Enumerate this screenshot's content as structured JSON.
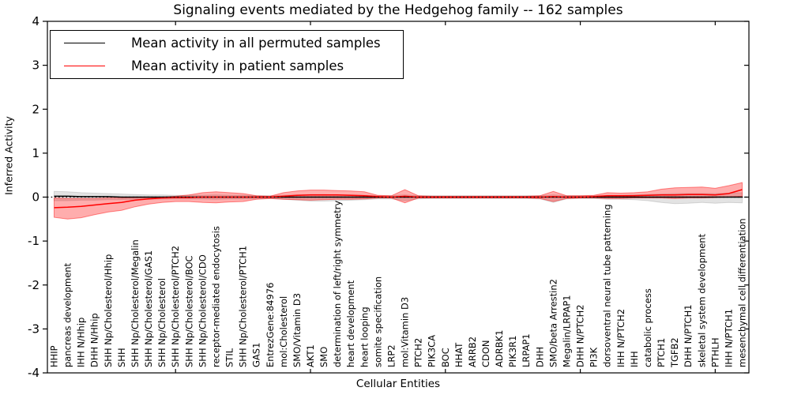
{
  "chart_data": {
    "type": "line",
    "title": "Signaling events mediated by the Hedgehog family -- 162 samples",
    "xlabel": "Cellular Entities",
    "ylabel": "Inferred Activity",
    "ylim": [
      -4,
      4
    ],
    "yticks": [
      4,
      3,
      2,
      1,
      0,
      -1,
      -2,
      -3,
      -4
    ],
    "xtick_major_indices": [
      9,
      19,
      29,
      39,
      49
    ],
    "grid": false,
    "legend_position": "upper left",
    "zero_line": {
      "y": 0,
      "style": "dotted",
      "color": "#000000"
    },
    "categories": [
      "HHIP",
      "pancreas development",
      "IHH N/Hhip",
      "DHH N/Hhip",
      "SHH Np/Cholesterol/Hhip",
      "SHH",
      "SHH Np/Cholesterol/Megalin",
      "SHH Np/Cholesterol/GAS1",
      "SHH Np/Cholesterol",
      "SHH Np/Cholesterol/PTCH2",
      "SHH Np/Cholesterol/BOC",
      "SHH Np/Cholesterol/CDO",
      "receptor-mediated endocytosis",
      "STIL",
      "SHH Np/Cholesterol/PTCH1",
      "GAS1",
      "EntrezGene:84976",
      "mol:Cholesterol",
      "SMO/Vitamin D3",
      "AKT1",
      "SMO",
      "determination of left/right symmetry",
      "heart development",
      "heart looping",
      "somite specification",
      "LRP2",
      "mol:Vitamin D3",
      "PTCH2",
      "PIK3CA",
      "BOC",
      "HHAT",
      "ARRB2",
      "CDON",
      "ADRBK1",
      "PIK3R1",
      "LRPAP1",
      "DHH",
      "SMO/beta Arrestin2",
      "Megalin/LRPAP1",
      "DHH N/PTCH2",
      "PI3K",
      "dorsoventral neural tube patterning",
      "IHH N/PTCH2",
      "IHH",
      "catabolic process",
      "PTCH1",
      "TGFB2",
      "DHH N/PTCH1",
      "skeletal system development",
      "PTHLH",
      "IHH N/PTCH1",
      "mesenchymal cell differentiation"
    ],
    "series": [
      {
        "name": "Mean activity in all permuted samples",
        "color": "#000000",
        "band_color": "#999999",
        "values": [
          0.02,
          0.02,
          0.01,
          0.01,
          0.01,
          0,
          0,
          0,
          0,
          0,
          0,
          0,
          0,
          0,
          0,
          0,
          0,
          0,
          0,
          0,
          0,
          0,
          0,
          0,
          0,
          0,
          0,
          0,
          0,
          0,
          0,
          0,
          0,
          0,
          0,
          0,
          0,
          0,
          0,
          0,
          0,
          0,
          0,
          0,
          0,
          0,
          0,
          0,
          0,
          0,
          0,
          0
        ],
        "band_upper": [
          0.13,
          0.12,
          0.1,
          0.09,
          0.08,
          0.07,
          0.06,
          0.05,
          0.05,
          0.04,
          0.04,
          0.04,
          0.05,
          0.04,
          0.04,
          0.03,
          0.03,
          0.04,
          0.05,
          0.06,
          0.06,
          0.05,
          0.05,
          0.04,
          0.03,
          0.03,
          0.05,
          0.03,
          0.03,
          0.03,
          0.03,
          0.03,
          0.03,
          0.03,
          0.03,
          0.03,
          0.03,
          0.05,
          0.03,
          0.03,
          0.03,
          0.04,
          0.04,
          0.05,
          0.06,
          0.07,
          0.08,
          0.08,
          0.08,
          0.08,
          0.09,
          0.1
        ],
        "band_lower": [
          -0.08,
          -0.08,
          -0.07,
          -0.07,
          -0.06,
          -0.06,
          -0.05,
          -0.05,
          -0.04,
          -0.04,
          -0.04,
          -0.04,
          -0.05,
          -0.04,
          -0.04,
          -0.03,
          -0.03,
          -0.05,
          -0.07,
          -0.09,
          -0.09,
          -0.08,
          -0.07,
          -0.06,
          -0.04,
          -0.04,
          -0.08,
          -0.04,
          -0.03,
          -0.03,
          -0.03,
          -0.03,
          -0.03,
          -0.03,
          -0.03,
          -0.03,
          -0.04,
          -0.12,
          -0.04,
          -0.03,
          -0.03,
          -0.05,
          -0.05,
          -0.06,
          -0.08,
          -0.12,
          -0.15,
          -0.14,
          -0.12,
          -0.14,
          -0.12,
          -0.13
        ]
      },
      {
        "name": "Mean activity in patient samples",
        "color": "#ff0000",
        "band_color": "#ff0000",
        "values": [
          -0.24,
          -0.23,
          -0.21,
          -0.18,
          -0.15,
          -0.12,
          -0.07,
          -0.04,
          -0.02,
          -0.01,
          -0.01,
          0,
          0,
          0,
          0,
          0,
          0,
          0.02,
          0.04,
          0.05,
          0.05,
          0.05,
          0.04,
          0.03,
          0.01,
          0,
          0.02,
          0,
          0,
          0,
          0,
          0,
          0,
          0,
          0,
          0,
          0,
          0.01,
          0,
          0,
          0.01,
          0.03,
          0.03,
          0.03,
          0.04,
          0.05,
          0.05,
          0.06,
          0.06,
          0.05,
          0.08,
          0.17
        ],
        "band_upper": [
          -0.02,
          -0.03,
          -0.03,
          -0.03,
          -0.02,
          -0.02,
          -0.01,
          -0.01,
          0,
          0.02,
          0.05,
          0.1,
          0.12,
          0.1,
          0.08,
          0.03,
          0.02,
          0.1,
          0.14,
          0.16,
          0.16,
          0.15,
          0.14,
          0.12,
          0.04,
          0.03,
          0.17,
          0.03,
          0.02,
          0.02,
          0.02,
          0.02,
          0.02,
          0.02,
          0.02,
          0.02,
          0.03,
          0.13,
          0.03,
          0.03,
          0.04,
          0.1,
          0.09,
          0.1,
          0.12,
          0.18,
          0.21,
          0.22,
          0.23,
          0.2,
          0.26,
          0.33
        ],
        "band_lower": [
          -0.46,
          -0.5,
          -0.47,
          -0.4,
          -0.34,
          -0.3,
          -0.22,
          -0.16,
          -0.12,
          -0.1,
          -0.1,
          -0.12,
          -0.13,
          -0.11,
          -0.1,
          -0.05,
          -0.03,
          -0.05,
          -0.06,
          -0.07,
          -0.06,
          -0.05,
          -0.05,
          -0.04,
          -0.02,
          -0.02,
          -0.13,
          -0.02,
          -0.02,
          -0.02,
          -0.02,
          -0.02,
          -0.02,
          -0.02,
          -0.02,
          -0.02,
          -0.03,
          -0.1,
          -0.03,
          -0.02,
          -0.02,
          -0.03,
          -0.03,
          -0.02,
          -0.02,
          -0.02,
          -0.03,
          -0.02,
          -0.02,
          -0.01,
          0,
          0.02
        ]
      }
    ]
  }
}
